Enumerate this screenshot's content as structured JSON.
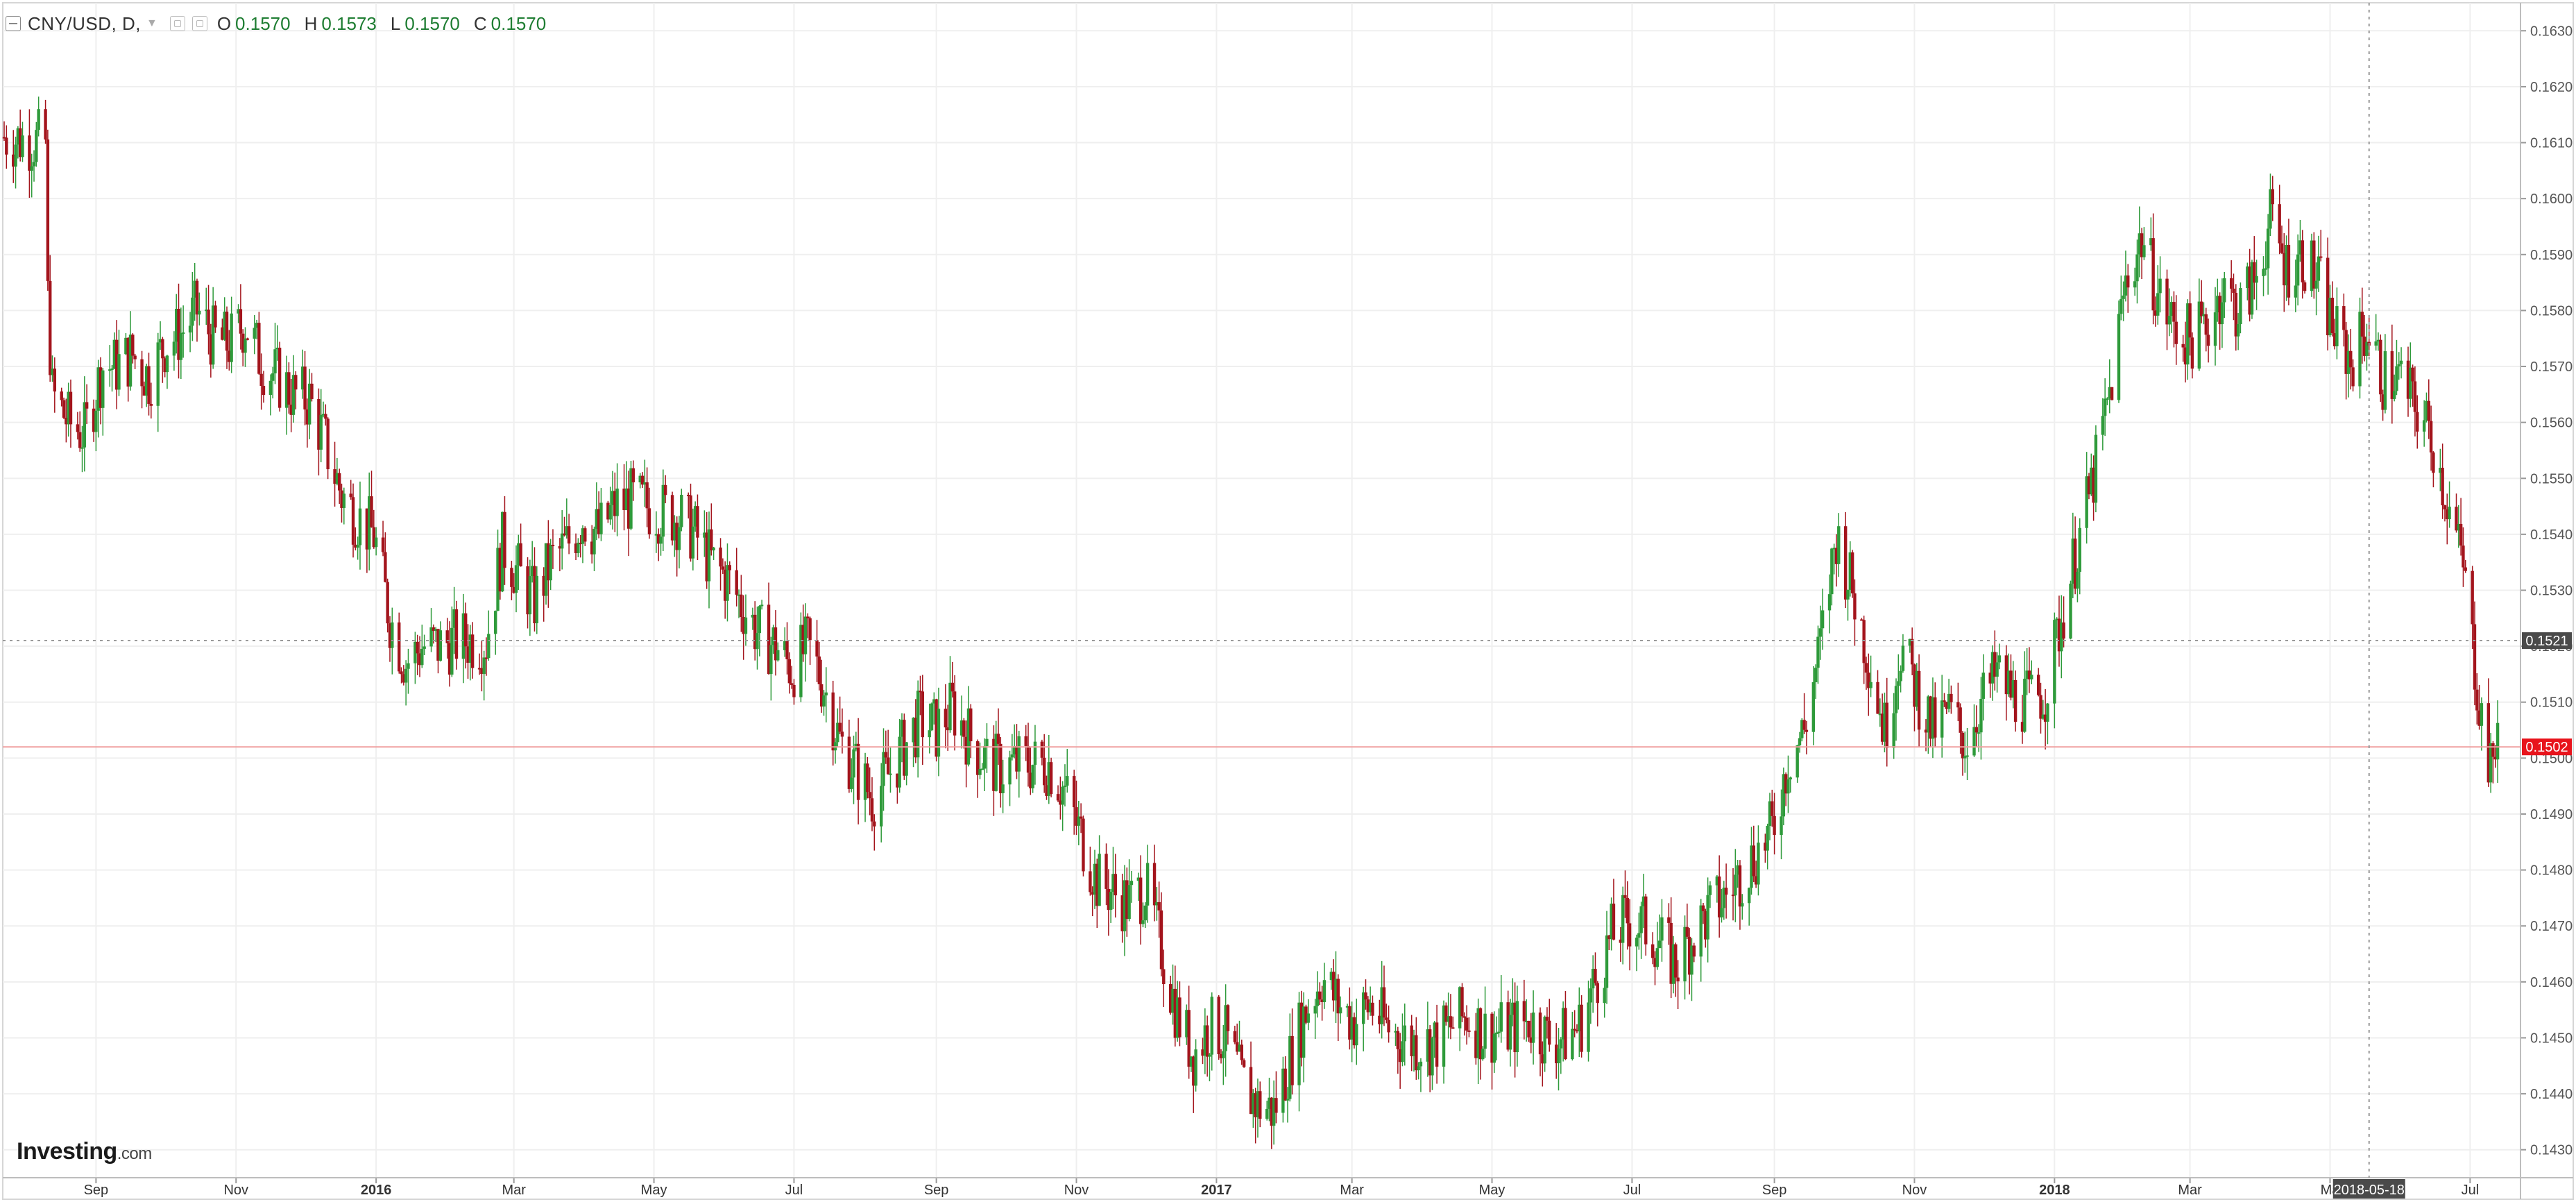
{
  "legend": {
    "symbol": "CNY/USD, D,",
    "ohlc": [
      {
        "key": "O",
        "value": "0.1570"
      },
      {
        "key": "H",
        "value": "0.1573"
      },
      {
        "key": "L",
        "value": "0.1570"
      },
      {
        "key": "C",
        "value": "0.1570"
      }
    ]
  },
  "brand": {
    "name": "Investing",
    "suffix": ".com"
  },
  "colors": {
    "up": "#2e9a3a",
    "down": "#a3141c",
    "grid": "#efefef",
    "axis": "#555555",
    "last_price_bg": "#e8141c",
    "crosshair_label_bg": "#4a4a4a",
    "last_price_line": "#f0a0a0"
  },
  "chart_data": {
    "type": "candlestick",
    "title": "CNY/USD, D,",
    "y_axis_side": "right",
    "ylim": [
      0.1425,
      0.1635
    ],
    "xlim": [
      "2015-07-23",
      "2018-07-16"
    ],
    "y_ticks": [
      "0.1630",
      "0.1620",
      "0.1610",
      "0.1600",
      "0.1590",
      "0.1580",
      "0.1570",
      "0.1560",
      "0.1550",
      "0.1540",
      "0.1530",
      "0.1520",
      "0.1510",
      "0.1500",
      "0.1490",
      "0.1480",
      "0.1470",
      "0.1460",
      "0.1450",
      "0.1440",
      "0.1430"
    ],
    "x_ticks": [
      {
        "date": "2015-09-01",
        "label": "Sep",
        "bold": false
      },
      {
        "date": "2015-11-01",
        "label": "Nov",
        "bold": false
      },
      {
        "date": "2016-01-01",
        "label": "2016",
        "bold": true
      },
      {
        "date": "2016-03-01",
        "label": "Mar",
        "bold": false
      },
      {
        "date": "2016-05-01",
        "label": "May",
        "bold": false
      },
      {
        "date": "2016-07-01",
        "label": "Jul",
        "bold": false
      },
      {
        "date": "2016-09-01",
        "label": "Sep",
        "bold": false
      },
      {
        "date": "2016-11-01",
        "label": "Nov",
        "bold": false
      },
      {
        "date": "2017-01-01",
        "label": "2017",
        "bold": true
      },
      {
        "date": "2017-03-01",
        "label": "Mar",
        "bold": false
      },
      {
        "date": "2017-05-01",
        "label": "May",
        "bold": false
      },
      {
        "date": "2017-07-01",
        "label": "Jul",
        "bold": false
      },
      {
        "date": "2017-09-01",
        "label": "Sep",
        "bold": false
      },
      {
        "date": "2017-11-01",
        "label": "Nov",
        "bold": false
      },
      {
        "date": "2018-01-01",
        "label": "2018",
        "bold": true
      },
      {
        "date": "2018-03-01",
        "label": "Mar",
        "bold": false
      },
      {
        "date": "2018-05-01",
        "label": "Ma",
        "bold": false
      },
      {
        "date": "2018-07-01",
        "label": "Jul",
        "bold": false
      }
    ],
    "last_price": {
      "value": 0.1502,
      "label": "0.1502"
    },
    "crosshair": {
      "date": "2018-05-18",
      "value": 0.1521,
      "date_label": "2018-05-18",
      "value_label": "0.1521"
    },
    "grid": true,
    "closes": [
      [
        "2015-07-23",
        0.1611
      ],
      [
        "2015-08-10",
        0.161
      ],
      [
        "2015-08-11",
        0.1582
      ],
      [
        "2015-08-13",
        0.1565
      ],
      [
        "2015-08-20",
        0.156
      ],
      [
        "2015-08-27",
        0.1558
      ],
      [
        "2015-09-04",
        0.157
      ],
      [
        "2015-09-10",
        0.157
      ],
      [
        "2015-09-17",
        0.1572
      ],
      [
        "2015-09-24",
        0.1568
      ],
      [
        "2015-10-01",
        0.1574
      ],
      [
        "2015-10-08",
        0.1576
      ],
      [
        "2015-10-15",
        0.158
      ],
      [
        "2015-10-22",
        0.1575
      ],
      [
        "2015-10-29",
        0.1574
      ],
      [
        "2015-11-05",
        0.1578
      ],
      [
        "2015-11-12",
        0.1571
      ],
      [
        "2015-11-19",
        0.1568
      ],
      [
        "2015-11-26",
        0.1565
      ],
      [
        "2015-12-03",
        0.1564
      ],
      [
        "2015-12-10",
        0.1556
      ],
      [
        "2015-12-17",
        0.1547
      ],
      [
        "2015-12-24",
        0.1543
      ],
      [
        "2015-12-31",
        0.154
      ],
      [
        "2016-01-07",
        0.1525
      ],
      [
        "2016-01-14",
        0.1517
      ],
      [
        "2016-01-21",
        0.152
      ],
      [
        "2016-01-28",
        0.152
      ],
      [
        "2016-02-04",
        0.1521
      ],
      [
        "2016-02-11",
        0.1521
      ],
      [
        "2016-02-18",
        0.1521
      ],
      [
        "2016-02-25",
        0.1538
      ],
      [
        "2016-03-03",
        0.1533
      ],
      [
        "2016-03-10",
        0.1528
      ],
      [
        "2016-03-17",
        0.1535
      ],
      [
        "2016-03-24",
        0.1538
      ],
      [
        "2016-03-31",
        0.1543
      ],
      [
        "2016-04-07",
        0.154
      ],
      [
        "2016-04-14",
        0.1545
      ],
      [
        "2016-04-21",
        0.1546
      ],
      [
        "2016-04-28",
        0.1545
      ],
      [
        "2016-05-05",
        0.1544
      ],
      [
        "2016-05-12",
        0.1543
      ],
      [
        "2016-05-19",
        0.154
      ],
      [
        "2016-05-26",
        0.1535
      ],
      [
        "2016-06-02",
        0.1532
      ],
      [
        "2016-06-09",
        0.1527
      ],
      [
        "2016-06-16",
        0.1522
      ],
      [
        "2016-06-23",
        0.152
      ],
      [
        "2016-06-30",
        0.1516
      ],
      [
        "2016-07-07",
        0.152
      ],
      [
        "2016-07-14",
        0.1513
      ],
      [
        "2016-07-21",
        0.1503
      ],
      [
        "2016-07-28",
        0.1498
      ],
      [
        "2016-08-04",
        0.1493
      ],
      [
        "2016-08-11",
        0.1497
      ],
      [
        "2016-08-18",
        0.1502
      ],
      [
        "2016-08-25",
        0.1507
      ],
      [
        "2016-09-01",
        0.1505
      ],
      [
        "2016-09-08",
        0.1509
      ],
      [
        "2016-09-15",
        0.1504
      ],
      [
        "2016-09-22",
        0.15
      ],
      [
        "2016-09-29",
        0.1498
      ],
      [
        "2016-10-06",
        0.1499
      ],
      [
        "2016-10-13",
        0.1499
      ],
      [
        "2016-10-20",
        0.1499
      ],
      [
        "2016-10-27",
        0.1494
      ],
      [
        "2016-11-03",
        0.1486
      ],
      [
        "2016-11-10",
        0.1478
      ],
      [
        "2016-11-17",
        0.1476
      ],
      [
        "2016-11-24",
        0.1474
      ],
      [
        "2016-12-01",
        0.1477
      ],
      [
        "2016-12-08",
        0.1466
      ],
      [
        "2016-12-15",
        0.1454
      ],
      [
        "2016-12-22",
        0.1447
      ],
      [
        "2016-12-29",
        0.1452
      ],
      [
        "2017-01-05",
        0.145
      ],
      [
        "2017-01-12",
        0.1442
      ],
      [
        "2017-01-19",
        0.1438
      ],
      [
        "2017-01-26",
        0.1437
      ],
      [
        "2017-02-02",
        0.1446
      ],
      [
        "2017-02-09",
        0.1455
      ],
      [
        "2017-02-16",
        0.1461
      ],
      [
        "2017-02-23",
        0.1456
      ],
      [
        "2017-03-02",
        0.1453
      ],
      [
        "2017-03-09",
        0.1456
      ],
      [
        "2017-03-16",
        0.1452
      ],
      [
        "2017-03-23",
        0.145
      ],
      [
        "2017-03-30",
        0.1449
      ],
      [
        "2017-04-06",
        0.1449
      ],
      [
        "2017-04-13",
        0.1452
      ],
      [
        "2017-04-20",
        0.1454
      ],
      [
        "2017-04-27",
        0.1451
      ],
      [
        "2017-05-04",
        0.1451
      ],
      [
        "2017-05-11",
        0.1452
      ],
      [
        "2017-05-18",
        0.1453
      ],
      [
        "2017-05-25",
        0.145
      ],
      [
        "2017-06-01",
        0.145
      ],
      [
        "2017-06-08",
        0.1452
      ],
      [
        "2017-06-15",
        0.146
      ],
      [
        "2017-06-22",
        0.1468
      ],
      [
        "2017-06-29",
        0.1471
      ],
      [
        "2017-07-06",
        0.147
      ],
      [
        "2017-07-13",
        0.1467
      ],
      [
        "2017-07-20",
        0.1463
      ],
      [
        "2017-07-27",
        0.1468
      ],
      [
        "2017-08-03",
        0.1472
      ],
      [
        "2017-08-10",
        0.1475
      ],
      [
        "2017-08-17",
        0.1479
      ],
      [
        "2017-08-24",
        0.1483
      ],
      [
        "2017-08-31",
        0.1487
      ],
      [
        "2017-09-07",
        0.15
      ],
      [
        "2017-09-14",
        0.1505
      ],
      [
        "2017-09-21",
        0.152
      ],
      [
        "2017-09-28",
        0.154
      ],
      [
        "2017-10-05",
        0.153
      ],
      [
        "2017-10-12",
        0.1518
      ],
      [
        "2017-10-19",
        0.1505
      ],
      [
        "2017-10-26",
        0.152
      ],
      [
        "2017-11-02",
        0.1512
      ],
      [
        "2017-11-09",
        0.1505
      ],
      [
        "2017-11-16",
        0.1508
      ],
      [
        "2017-11-23",
        0.1503
      ],
      [
        "2017-11-30",
        0.151
      ],
      [
        "2017-12-07",
        0.1515
      ],
      [
        "2017-12-14",
        0.1511
      ],
      [
        "2017-12-21",
        0.151
      ],
      [
        "2017-12-28",
        0.1512
      ],
      [
        "2018-01-04",
        0.1525
      ],
      [
        "2018-01-11",
        0.1538
      ],
      [
        "2018-01-18",
        0.155
      ],
      [
        "2018-01-25",
        0.1565
      ],
      [
        "2018-02-01",
        0.1585
      ],
      [
        "2018-02-08",
        0.1593
      ],
      [
        "2018-02-15",
        0.1583
      ],
      [
        "2018-02-22",
        0.1577
      ],
      [
        "2018-03-01",
        0.1575
      ],
      [
        "2018-03-08",
        0.1577
      ],
      [
        "2018-03-15",
        0.1584
      ],
      [
        "2018-03-22",
        0.158
      ],
      [
        "2018-03-29",
        0.1585
      ],
      [
        "2018-04-05",
        0.1596
      ],
      [
        "2018-04-12",
        0.1588
      ],
      [
        "2018-04-19",
        0.159
      ],
      [
        "2018-04-26",
        0.1585
      ],
      [
        "2018-05-03",
        0.1576
      ],
      [
        "2018-05-10",
        0.1571
      ],
      [
        "2018-05-17",
        0.1577
      ],
      [
        "2018-05-24",
        0.1568
      ],
      [
        "2018-05-31",
        0.1568
      ],
      [
        "2018-06-07",
        0.1563
      ],
      [
        "2018-06-14",
        0.1558
      ],
      [
        "2018-06-21",
        0.1546
      ],
      [
        "2018-06-28",
        0.1534
      ],
      [
        "2018-07-05",
        0.151
      ],
      [
        "2018-07-10",
        0.1497
      ],
      [
        "2018-07-13",
        0.1506
      ],
      [
        "2018-07-16",
        0.1502
      ]
    ]
  }
}
